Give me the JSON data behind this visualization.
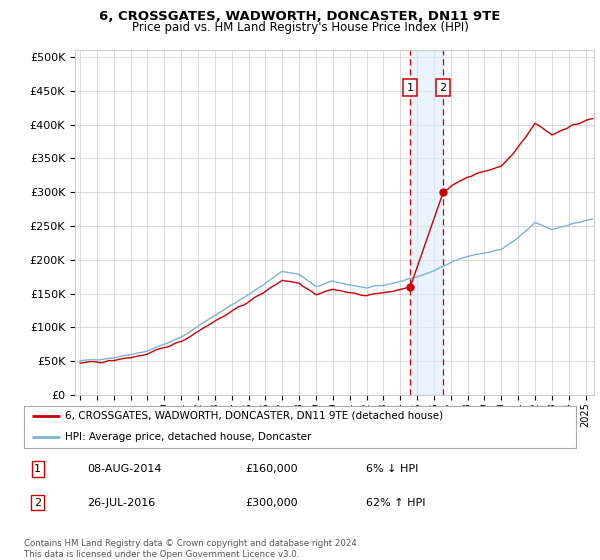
{
  "title1": "6, CROSSGATES, WADWORTH, DONCASTER, DN11 9TE",
  "title2": "Price paid vs. HM Land Registry's House Price Index (HPI)",
  "ylabel_ticks": [
    "£0",
    "£50K",
    "£100K",
    "£150K",
    "£200K",
    "£250K",
    "£300K",
    "£350K",
    "£400K",
    "£450K",
    "£500K"
  ],
  "ytick_values": [
    0,
    50000,
    100000,
    150000,
    200000,
    250000,
    300000,
    350000,
    400000,
    450000,
    500000
  ],
  "xlim_start": 1994.7,
  "xlim_end": 2025.5,
  "ylim_min": 0,
  "ylim_max": 510000,
  "transaction1_year": 2014.6,
  "transaction2_year": 2016.55,
  "transaction1_price": 160000,
  "transaction2_price": 300000,
  "transaction1_label": "1",
  "transaction2_label": "2",
  "legend_line1": "6, CROSSGATES, WADWORTH, DONCASTER, DN11 9TE (detached house)",
  "legend_line2": "HPI: Average price, detached house, Doncaster",
  "annotation1_date": "08-AUG-2014",
  "annotation1_price": "£160,000",
  "annotation1_pct": "6% ↓ HPI",
  "annotation2_date": "26-JUL-2016",
  "annotation2_price": "£300,000",
  "annotation2_pct": "62% ↑ HPI",
  "footer": "Contains HM Land Registry data © Crown copyright and database right 2024.\nThis data is licensed under the Open Government Licence v3.0.",
  "hpi_color": "#7ab3d8",
  "price_color": "#cc0000",
  "shade_color": "#ddeeff",
  "grid_color": "#cccccc",
  "bg_color": "#ffffff"
}
